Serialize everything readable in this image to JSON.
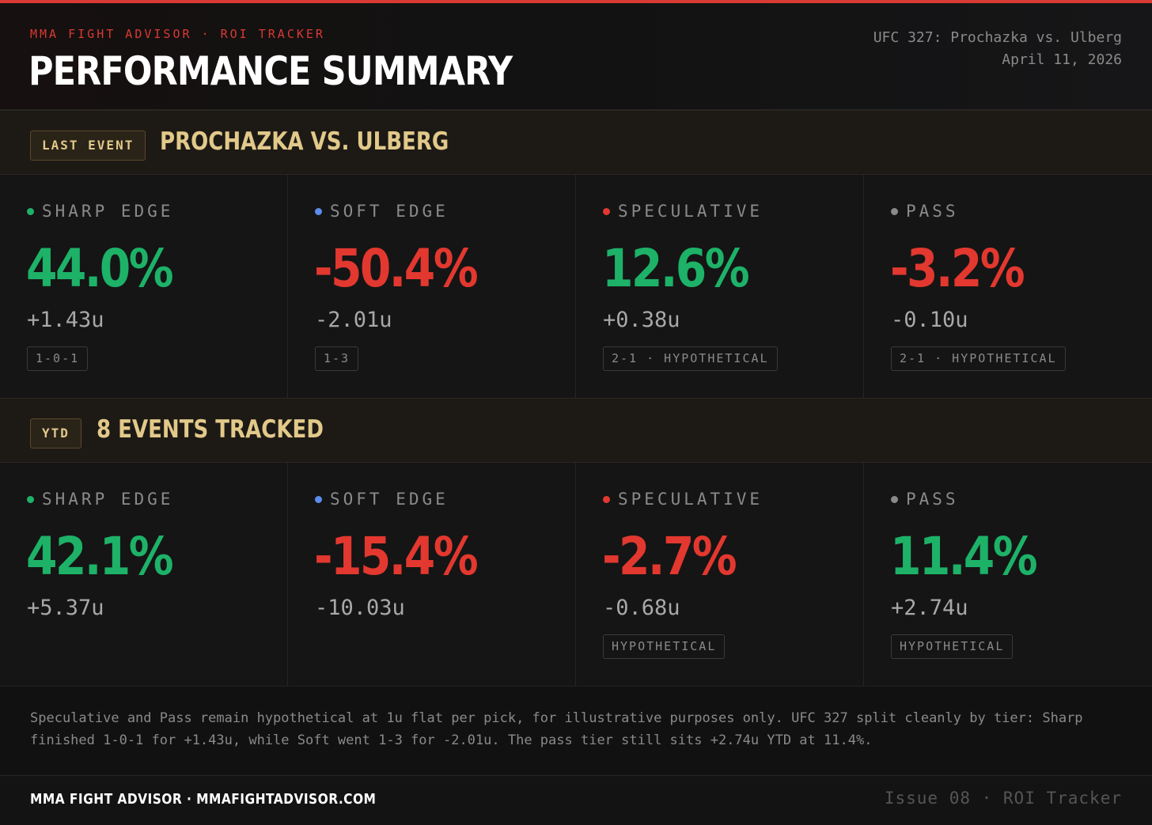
{
  "colors": {
    "accent": "#d93a33",
    "positive": "#1db268",
    "negative": "#e2382f",
    "gold": "#e2c98a",
    "sharp_dot": "#1db268",
    "soft_dot": "#5b8def",
    "speculative_dot": "#e2382f",
    "pass_dot": "#8a8a8a"
  },
  "header": {
    "kicker": "MMA FIGHT ADVISOR · ROI TRACKER",
    "title": "PERFORMANCE SUMMARY",
    "event_name": "UFC 327: Prochazka vs. Ulberg",
    "event_date": "April 11, 2026"
  },
  "last_event": {
    "badge": "LAST EVENT",
    "title": "PROCHAZKA VS. ULBERG",
    "tiers": [
      {
        "name": "SHARP EDGE",
        "dot": "sharp_dot",
        "roi": "44.0%",
        "units": "+1.43u",
        "record": "1-0-1",
        "sign": "pos"
      },
      {
        "name": "SOFT EDGE",
        "dot": "soft_dot",
        "roi": "-50.4%",
        "units": "-2.01u",
        "record": "1-3",
        "sign": "neg"
      },
      {
        "name": "SPECULATIVE",
        "dot": "speculative_dot",
        "roi": "12.6%",
        "units": "+0.38u",
        "record": "2-1 · HYPOTHETICAL",
        "sign": "pos"
      },
      {
        "name": "PASS",
        "dot": "pass_dot",
        "roi": "-3.2%",
        "units": "-0.10u",
        "record": "2-1 · HYPOTHETICAL",
        "sign": "neg"
      }
    ]
  },
  "ytd": {
    "badge": "YTD",
    "title": "8 EVENTS TRACKED",
    "tiers": [
      {
        "name": "SHARP EDGE",
        "dot": "sharp_dot",
        "roi": "42.1%",
        "units": "+5.37u",
        "record": "",
        "sign": "pos"
      },
      {
        "name": "SOFT EDGE",
        "dot": "soft_dot",
        "roi": "-15.4%",
        "units": "-10.03u",
        "record": "",
        "sign": "neg"
      },
      {
        "name": "SPECULATIVE",
        "dot": "speculative_dot",
        "roi": "-2.7%",
        "units": "-0.68u",
        "record": "HYPOTHETICAL",
        "sign": "neg"
      },
      {
        "name": "PASS",
        "dot": "pass_dot",
        "roi": "11.4%",
        "units": "+2.74u",
        "record": "HYPOTHETICAL",
        "sign": "pos"
      }
    ]
  },
  "note": "Speculative and Pass remain hypothetical at 1u flat per pick, for illustrative purposes only. UFC 327 split cleanly by tier: Sharp finished 1-0-1 for +1.43u, while Soft went 1-3 for -2.01u. The pass tier still sits +2.74u YTD at 11.4%.",
  "footer": {
    "brand": "MMA FIGHT ADVISOR · MMAFIGHTADVISOR.COM",
    "issue": "Issue 08 · ROI Tracker"
  }
}
